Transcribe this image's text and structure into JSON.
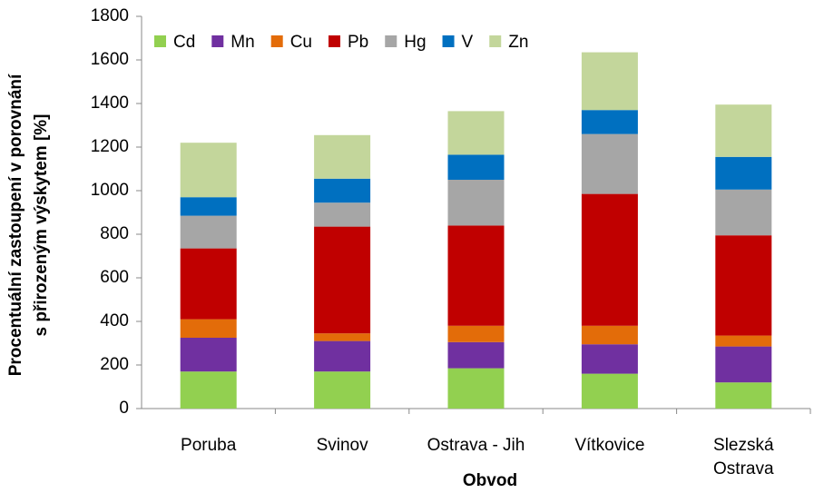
{
  "chart_data": {
    "type": "stacked-bar",
    "categories": [
      "Poruba",
      "Svinov",
      "Ostrava - Jih",
      "Vítkovice",
      "Slezská Ostrava"
    ],
    "series": [
      {
        "name": "Cd",
        "color": "#92d050",
        "values": [
          170,
          170,
          185,
          160,
          120
        ]
      },
      {
        "name": "Mn",
        "color": "#7030a0",
        "values": [
          155,
          140,
          120,
          135,
          165
        ]
      },
      {
        "name": "Cu",
        "color": "#e36c09",
        "values": [
          85,
          35,
          75,
          85,
          50
        ]
      },
      {
        "name": "Pb",
        "color": "#c00000",
        "values": [
          325,
          490,
          460,
          605,
          460
        ]
      },
      {
        "name": "Hg",
        "color": "#a6a6a6",
        "values": [
          150,
          110,
          210,
          275,
          210
        ]
      },
      {
        "name": "V",
        "color": "#0070c0",
        "values": [
          85,
          110,
          115,
          110,
          150
        ]
      },
      {
        "name": "Zn",
        "color": "#c3d69b",
        "values": [
          250,
          200,
          200,
          265,
          240
        ]
      }
    ],
    "xlabel": "Obvod",
    "ylabel": [
      "Procentuální zastoupení v porovnání",
      "s přirozeným výskytem [%]"
    ],
    "ylim": [
      0,
      1800
    ],
    "yticks": [
      0,
      200,
      400,
      600,
      800,
      1000,
      1200,
      1400,
      1600,
      1800
    ],
    "legend": "top-left"
  }
}
